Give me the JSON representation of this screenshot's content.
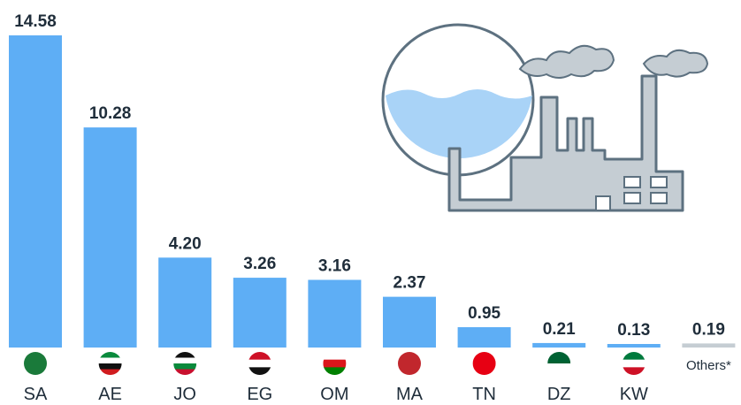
{
  "chart_data": {
    "type": "bar",
    "categories": [
      "SA",
      "AE",
      "JO",
      "EG",
      "OM",
      "MA",
      "TN",
      "DZ",
      "KW",
      "Others*"
    ],
    "values": [
      14.58,
      10.28,
      4.2,
      3.26,
      3.16,
      2.37,
      0.95,
      0.21,
      0.13,
      0.19
    ],
    "value_labels": [
      "14.58",
      "10.28",
      "4.20",
      "3.26",
      "3.16",
      "2.37",
      "0.95",
      "0.21",
      "0.13",
      "0.19"
    ],
    "colors": [
      "#5eaef5",
      "#5eaef5",
      "#5eaef5",
      "#5eaef5",
      "#5eaef5",
      "#5eaef5",
      "#5eaef5",
      "#5eaef5",
      "#5eaef5",
      "#c5cdd3"
    ]
  }
}
